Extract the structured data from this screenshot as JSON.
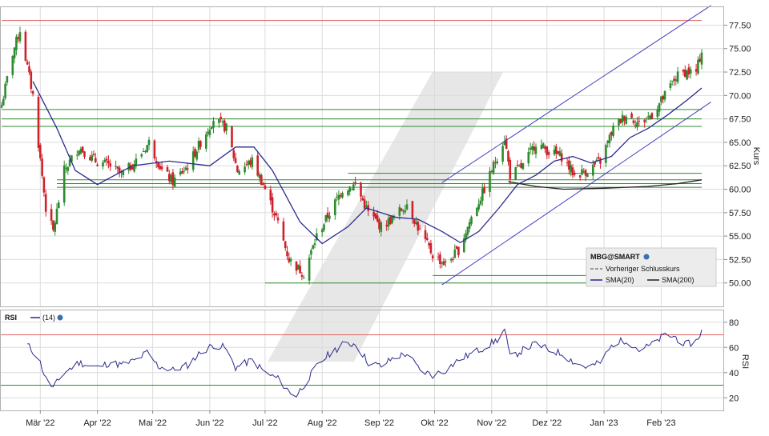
{
  "chart_data": [
    {
      "type": "candlestick",
      "symbol": "MBG@SMART",
      "ylabel": "Kurs",
      "ylim": [
        47.5,
        79.5
      ],
      "y_ticks": [
        50.0,
        52.5,
        55.0,
        57.5,
        60.0,
        62.5,
        65.0,
        67.5,
        70.0,
        72.5,
        75.0,
        77.5
      ],
      "y_tick_labels": [
        "50.00",
        "52.50",
        "55.00",
        "57.50",
        "60.00",
        "62.50",
        "65.00",
        "67.50",
        "70.00",
        "72.50",
        "75.00",
        "77.50"
      ],
      "x_start": "2022-02-08",
      "x_end": "2023-02-23",
      "x_ticks": [
        "2022-03-01",
        "2022-04-01",
        "2022-05-01",
        "2022-06-01",
        "2022-07-01",
        "2022-08-01",
        "2022-09-01",
        "2022-10-01",
        "2022-11-01",
        "2022-12-01",
        "2023-01-01",
        "2023-02-01"
      ],
      "x_tick_labels": [
        "Mär '22",
        "Apr '22",
        "Mai '22",
        "Jun '22",
        "Jul '22",
        "Aug '22",
        "Sep '22",
        "Okt '22",
        "Nov '22",
        "Dez '22",
        "Jan '23",
        "Feb '23"
      ],
      "close_anchors": [
        [
          "2022-02-08",
          69.0
        ],
        [
          "2022-02-14",
          74.5
        ],
        [
          "2022-02-18",
          77.0
        ],
        [
          "2022-02-25",
          70.0
        ],
        [
          "2022-03-04",
          58.0
        ],
        [
          "2022-03-08",
          55.5
        ],
        [
          "2022-03-14",
          62.0
        ],
        [
          "2022-03-22",
          64.5
        ],
        [
          "2022-03-31",
          63.0
        ],
        [
          "2022-04-08",
          62.5
        ],
        [
          "2022-04-14",
          61.5
        ],
        [
          "2022-04-22",
          63.0
        ],
        [
          "2022-04-29",
          65.0
        ],
        [
          "2022-05-06",
          62.0
        ],
        [
          "2022-05-12",
          60.8
        ],
        [
          "2022-05-20",
          62.5
        ],
        [
          "2022-05-27",
          65.0
        ],
        [
          "2022-06-03",
          67.5
        ],
        [
          "2022-06-10",
          66.5
        ],
        [
          "2022-06-16",
          62.0
        ],
        [
          "2022-06-24",
          63.0
        ],
        [
          "2022-06-30",
          60.5
        ],
        [
          "2022-07-07",
          57.0
        ],
        [
          "2022-07-14",
          52.5
        ],
        [
          "2022-07-22",
          51.0
        ],
        [
          "2022-07-29",
          55.0
        ],
        [
          "2022-08-05",
          57.5
        ],
        [
          "2022-08-12",
          60.0
        ],
        [
          "2022-08-19",
          60.5
        ],
        [
          "2022-08-26",
          57.5
        ],
        [
          "2022-09-02",
          56.0
        ],
        [
          "2022-09-09",
          57.0
        ],
        [
          "2022-09-16",
          58.5
        ],
        [
          "2022-09-23",
          55.5
        ],
        [
          "2022-09-30",
          53.0
        ],
        [
          "2022-10-07",
          52.0
        ],
        [
          "2022-10-14",
          53.5
        ],
        [
          "2022-10-21",
          57.0
        ],
        [
          "2022-10-28",
          60.0
        ],
        [
          "2022-11-04",
          63.5
        ],
        [
          "2022-11-08",
          65.5
        ],
        [
          "2022-11-11",
          61.5
        ],
        [
          "2022-11-18",
          62.5
        ],
        [
          "2022-11-25",
          65.0
        ],
        [
          "2022-12-02",
          64.0
        ],
        [
          "2022-12-09",
          63.5
        ],
        [
          "2022-12-16",
          61.5
        ],
        [
          "2022-12-23",
          62.0
        ],
        [
          "2022-12-30",
          63.0
        ],
        [
          "2023-01-06",
          66.5
        ],
        [
          "2023-01-13",
          68.0
        ],
        [
          "2023-01-20",
          67.0
        ],
        [
          "2023-01-27",
          68.0
        ],
        [
          "2023-02-03",
          70.0
        ],
        [
          "2023-02-09",
          72.0
        ],
        [
          "2023-02-14",
          72.5
        ],
        [
          "2023-02-20",
          72.5
        ],
        [
          "2023-02-23",
          74.8
        ]
      ],
      "sma20": [
        [
          "2022-02-25",
          71.5
        ],
        [
          "2022-03-10",
          66.5
        ],
        [
          "2022-03-20",
          62.0
        ],
        [
          "2022-04-01",
          60.5
        ],
        [
          "2022-04-20",
          62.5
        ],
        [
          "2022-05-10",
          63.0
        ],
        [
          "2022-06-01",
          62.5
        ],
        [
          "2022-06-15",
          64.5
        ],
        [
          "2022-06-25",
          64.5
        ],
        [
          "2022-07-05",
          62.0
        ],
        [
          "2022-07-20",
          56.5
        ],
        [
          "2022-08-01",
          54.2
        ],
        [
          "2022-08-15",
          56.0
        ],
        [
          "2022-08-25",
          58.0
        ],
        [
          "2022-09-10",
          57.0
        ],
        [
          "2022-09-22",
          56.8
        ],
        [
          "2022-10-05",
          55.5
        ],
        [
          "2022-10-15",
          54.3
        ],
        [
          "2022-10-25",
          55.5
        ],
        [
          "2022-11-05",
          58.0
        ],
        [
          "2022-11-15",
          60.5
        ],
        [
          "2022-11-25",
          61.5
        ],
        [
          "2022-12-05",
          63.0
        ],
        [
          "2022-12-15",
          63.5
        ],
        [
          "2022-12-25",
          62.8
        ],
        [
          "2023-01-05",
          63.5
        ],
        [
          "2023-01-15",
          65.5
        ],
        [
          "2023-01-25",
          66.5
        ],
        [
          "2023-02-05",
          68.0
        ],
        [
          "2023-02-15",
          69.5
        ],
        [
          "2023-02-23",
          70.8
        ]
      ],
      "sma200": [
        [
          "2022-11-10",
          60.8
        ],
        [
          "2022-11-25",
          60.3
        ],
        [
          "2022-12-10",
          60.0
        ],
        [
          "2023-01-01",
          60.1
        ],
        [
          "2023-01-25",
          60.3
        ],
        [
          "2023-02-10",
          60.6
        ],
        [
          "2023-02-23",
          61.0
        ]
      ],
      "resistance_lines": [
        {
          "y": 78.0,
          "from": "2022-02-08",
          "to": "2023-02-23",
          "color": "#e06060"
        },
        {
          "y": 68.5,
          "from": "2022-02-08",
          "to": "2023-02-23",
          "color": "#2e8b2e"
        },
        {
          "y": 67.5,
          "from": "2022-02-08",
          "to": "2023-02-23",
          "color": "#2e8b2e"
        },
        {
          "y": 66.7,
          "from": "2022-02-08",
          "to": "2023-02-23",
          "color": "#2e8b2e"
        },
        {
          "y": 61.7,
          "from": "2022-08-15",
          "to": "2023-02-23",
          "color": "#2e8b2e"
        },
        {
          "y": 61.0,
          "from": "2022-03-10",
          "to": "2023-02-23",
          "color": "#2e8b2e"
        },
        {
          "y": 60.6,
          "from": "2022-03-10",
          "to": "2023-02-23",
          "color": "#2e8b2e"
        },
        {
          "y": 60.2,
          "from": "2022-03-10",
          "to": "2023-02-23",
          "color": "#2e8b2e"
        },
        {
          "y": 50.8,
          "from": "2022-09-30",
          "to": "2023-02-23",
          "color": "#2e8b2e"
        },
        {
          "y": 50.0,
          "from": "2022-07-01",
          "to": "2023-02-23",
          "color": "#2e8b2e"
        }
      ],
      "trend_channel": [
        {
          "from": [
            "2022-10-05",
            60.7
          ],
          "to": [
            "2023-02-28",
            79.6
          ],
          "color": "#4040c0"
        },
        {
          "from": [
            "2022-10-05",
            49.8
          ],
          "to": [
            "2023-02-28",
            69.3
          ],
          "color": "#4040c0"
        }
      ],
      "legend": {
        "title": "MBG@SMART",
        "prev_close": "Vorheriger Schlusskurs",
        "sma20": "SMA(20)",
        "sma200": "SMA(200)"
      },
      "colors": {
        "up": "#2e8b2e",
        "down": "#d0202a",
        "sma20": "#2b2b8c",
        "sma200": "#222222",
        "grid": "#d8d8d8",
        "channel": "#4040c0"
      }
    },
    {
      "type": "line",
      "name": "RSI",
      "label": "RSI",
      "period_label": "(14)",
      "ylabel": "RSI",
      "ylim": [
        10,
        90
      ],
      "y_ticks": [
        20,
        40,
        60,
        80
      ],
      "y_tick_labels": [
        "20",
        "40",
        "60",
        "80"
      ],
      "levels": [
        70,
        30
      ],
      "anchors": [
        [
          "2022-02-22",
          62
        ],
        [
          "2022-02-28",
          52
        ],
        [
          "2022-03-04",
          35
        ],
        [
          "2022-03-08",
          28
        ],
        [
          "2022-03-14",
          40
        ],
        [
          "2022-03-22",
          48
        ],
        [
          "2022-04-01",
          44
        ],
        [
          "2022-04-08",
          48
        ],
        [
          "2022-04-14",
          46
        ],
        [
          "2022-04-22",
          50
        ],
        [
          "2022-04-28",
          56
        ],
        [
          "2022-05-04",
          45
        ],
        [
          "2022-05-12",
          42
        ],
        [
          "2022-05-20",
          46
        ],
        [
          "2022-05-27",
          56
        ],
        [
          "2022-06-03",
          62
        ],
        [
          "2022-06-09",
          60
        ],
        [
          "2022-06-15",
          44
        ],
        [
          "2022-06-24",
          50
        ],
        [
          "2022-07-01",
          40
        ],
        [
          "2022-07-08",
          35
        ],
        [
          "2022-07-14",
          25
        ],
        [
          "2022-07-18",
          22
        ],
        [
          "2022-07-22",
          30
        ],
        [
          "2022-07-29",
          45
        ],
        [
          "2022-08-05",
          55
        ],
        [
          "2022-08-12",
          62
        ],
        [
          "2022-08-19",
          63
        ],
        [
          "2022-08-26",
          48
        ],
        [
          "2022-09-02",
          45
        ],
        [
          "2022-09-09",
          52
        ],
        [
          "2022-09-16",
          55
        ],
        [
          "2022-09-23",
          42
        ],
        [
          "2022-09-30",
          38
        ],
        [
          "2022-10-07",
          42
        ],
        [
          "2022-10-14",
          50
        ],
        [
          "2022-10-21",
          55
        ],
        [
          "2022-10-28",
          60
        ],
        [
          "2022-11-04",
          66
        ],
        [
          "2022-11-08",
          74
        ],
        [
          "2022-11-11",
          52
        ],
        [
          "2022-11-18",
          58
        ],
        [
          "2022-11-25",
          63
        ],
        [
          "2022-12-02",
          58
        ],
        [
          "2022-12-09",
          55
        ],
        [
          "2022-12-16",
          48
        ],
        [
          "2022-12-23",
          44
        ],
        [
          "2022-12-30",
          48
        ],
        [
          "2023-01-06",
          63
        ],
        [
          "2023-01-13",
          66
        ],
        [
          "2023-01-20",
          58
        ],
        [
          "2023-01-27",
          62
        ],
        [
          "2023-02-03",
          70
        ],
        [
          "2023-02-09",
          68
        ],
        [
          "2023-02-14",
          62
        ],
        [
          "2023-02-20",
          65
        ],
        [
          "2023-02-23",
          73
        ]
      ],
      "colors": {
        "line": "#2b2b8c",
        "level70": "#e06060",
        "level30": "#2e8b2e"
      }
    }
  ]
}
